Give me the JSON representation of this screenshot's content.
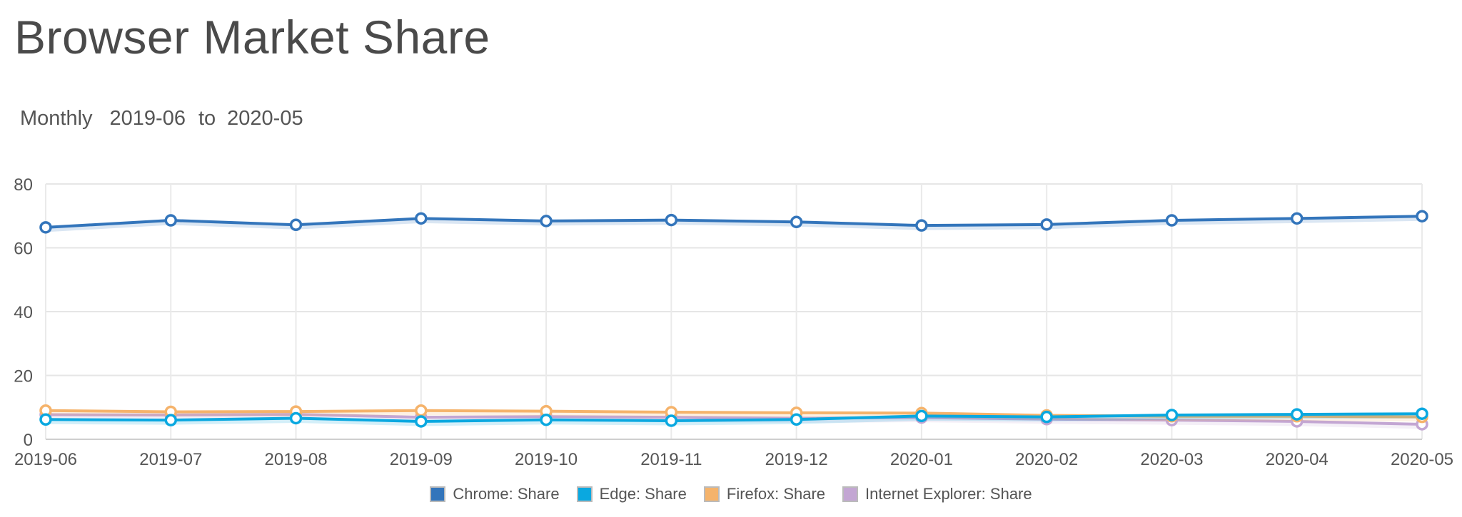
{
  "page": {
    "title": "Browser Market Share"
  },
  "range": {
    "period": "Monthly",
    "from": "2019-06",
    "to_word": "to",
    "to": "2020-05"
  },
  "chart_data": {
    "type": "line",
    "title": "Browser Market Share",
    "xlabel": "",
    "ylabel": "",
    "x": [
      "2019-06",
      "2019-07",
      "2019-08",
      "2019-09",
      "2019-10",
      "2019-11",
      "2019-12",
      "2020-01",
      "2020-02",
      "2020-03",
      "2020-04",
      "2020-05"
    ],
    "ylim": [
      0,
      80
    ],
    "yticks": [
      0,
      20,
      40,
      60,
      80
    ],
    "grid": true,
    "legend_position": "bottom",
    "series": [
      {
        "name": "Chrome: Share",
        "color": "#3375bb",
        "values": [
          66.4,
          68.6,
          67.2,
          69.2,
          68.4,
          68.7,
          68.1,
          67.0,
          67.3,
          68.6,
          69.2,
          69.9
        ]
      },
      {
        "name": "Edge: Share",
        "color": "#0aa8e0",
        "values": [
          6.2,
          6.0,
          6.6,
          5.6,
          6.1,
          5.8,
          6.2,
          7.3,
          7.0,
          7.6,
          7.8,
          8.0
        ]
      },
      {
        "name": "Firefox: Share",
        "color": "#f5b36b",
        "values": [
          9.0,
          8.6,
          8.7,
          9.0,
          8.8,
          8.5,
          8.3,
          8.2,
          7.5,
          7.2,
          7.2,
          7.0
        ]
      },
      {
        "name": "Internet Explorer: Share",
        "color": "#c3a6d3",
        "values": [
          7.7,
          7.6,
          7.8,
          6.9,
          7.1,
          6.9,
          6.6,
          6.8,
          6.3,
          6.0,
          5.6,
          4.7
        ]
      }
    ]
  }
}
